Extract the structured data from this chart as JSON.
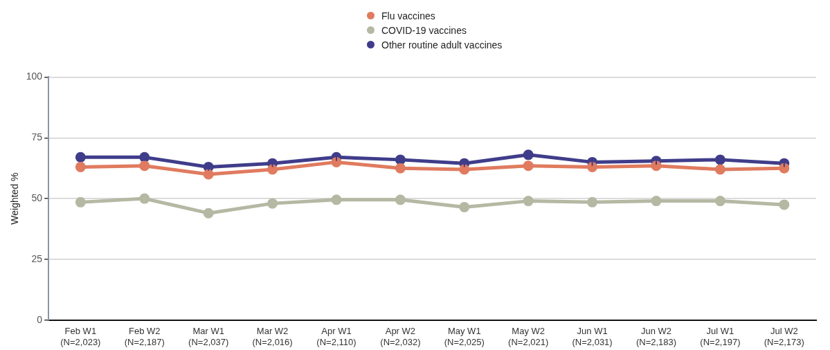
{
  "chart_data": {
    "type": "line",
    "ylabel": "Weighted %",
    "categories": [
      "Feb W1\n(N=2,023)",
      "Feb W2\n(N=2,187)",
      "Mar W1\n(N=2,037)",
      "Mar W2\n(N=2,016)",
      "Apr W1\n(N=2,110)",
      "Apr W2\n(N=2,032)",
      "May W1\n(N=2,025)",
      "May W2\n(N=2,021)",
      "Jun W1\n(N=2,031)",
      "Jun W2\n(N=2,183)",
      "Jul W1\n(N=2,197)",
      "Jul W2\n(N=2,173)"
    ],
    "series": [
      {
        "name": "Flu vaccines",
        "color": "#e07b5f",
        "values": [
          63,
          63.5,
          60,
          62,
          65,
          62.5,
          62,
          63.5,
          63,
          63.5,
          62,
          62.5
        ],
        "errors": [
          1.5,
          1.5,
          1.5,
          1.5,
          1.5,
          1.5,
          1.5,
          1.5,
          1.5,
          1.5,
          1.5,
          1.5
        ]
      },
      {
        "name": "COVID-19 vaccines",
        "color": "#b5b8a3",
        "values": [
          48.5,
          50,
          44,
          48,
          49.5,
          49.5,
          46.5,
          49,
          48.5,
          49,
          49,
          47.5
        ],
        "errors": [
          1.5,
          1.5,
          1.5,
          1.5,
          1.5,
          1.5,
          1.5,
          1.5,
          1.5,
          1.5,
          1.5,
          1.5
        ]
      },
      {
        "name": "Other routine adult vaccines",
        "color": "#3f3d8a",
        "values": [
          67,
          67,
          63,
          64.5,
          67,
          66,
          64.5,
          68,
          65,
          65.5,
          66,
          64.5
        ],
        "errors": [
          1.5,
          1.5,
          1.5,
          1.5,
          1.5,
          1.5,
          1.5,
          1.5,
          1.5,
          1.5,
          1.5,
          1.5
        ]
      }
    ],
    "ylim": [
      0,
      100
    ],
    "yticks": [
      0,
      25,
      50,
      75,
      100
    ],
    "grid": "y",
    "legend": "top",
    "marker": "circle",
    "line_style": "solid"
  }
}
